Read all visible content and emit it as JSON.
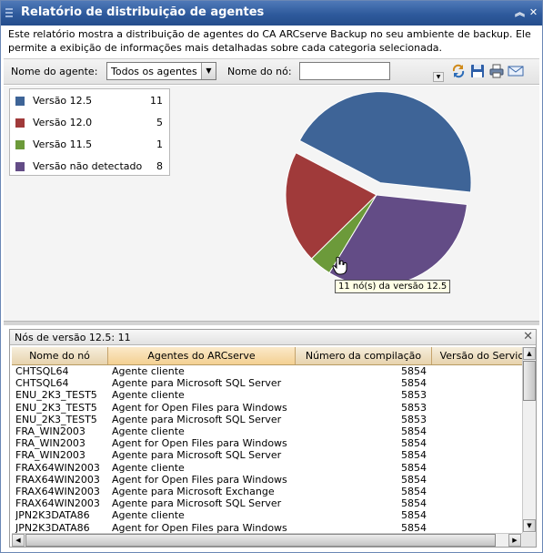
{
  "window": {
    "title": "Relatório de distribuição de agentes",
    "description": "Este relatório mostra a distribuição de agentes do CA ARCserve Backup no seu ambiente de backup. Ele permite a exibição de informações mais detalhadas sobre cada categoria selecionada."
  },
  "filters": {
    "agent_label": "Nome do agente:",
    "agent_value": "Todos os agentes",
    "node_label": "Nome do nó:",
    "node_value": ""
  },
  "toolbar_icons": [
    "refresh-icon",
    "save-icon",
    "print-icon",
    "email-icon"
  ],
  "legend": [
    {
      "label": "Versão 12.5",
      "count": "11",
      "color": "#3e6497"
    },
    {
      "label": "Versão 12.0",
      "count": "5",
      "color": "#a03a3a"
    },
    {
      "label": "Versão 11.5",
      "count": "1",
      "color": "#6c9a3a"
    },
    {
      "label": "Versão não detectado",
      "count": "8",
      "color": "#634c86"
    }
  ],
  "chart_data": {
    "type": "pie",
    "categories": [
      "Versão 12.5",
      "Versão 12.0",
      "Versão 11.5",
      "Versão não detectado"
    ],
    "values": [
      11,
      5,
      1,
      8
    ],
    "colors": [
      "#3e6497",
      "#a03a3a",
      "#6c9a3a",
      "#634c86"
    ],
    "exploded": "Versão 12.5",
    "legend_position": "top-left"
  },
  "tooltip": "11 nó(s) da versão 12.5",
  "detail": {
    "title": "Nós de versão 12.5: 11",
    "columns": [
      "Nome do nó",
      "Agentes do ARCserve",
      "Número da compilação",
      "Versão do Servic"
    ],
    "rows": [
      [
        "CHTSQL64",
        "Agente cliente",
        "5854",
        ""
      ],
      [
        "CHTSQL64",
        "Agente para Microsoft SQL Server",
        "5854",
        ""
      ],
      [
        "ENU_2K3_TEST5",
        "Agente cliente",
        "5853",
        ""
      ],
      [
        "ENU_2K3_TEST5",
        "Agent for Open Files para Windows",
        "5853",
        ""
      ],
      [
        "ENU_2K3_TEST5",
        "Agente para Microsoft SQL Server",
        "5853",
        ""
      ],
      [
        "FRA_WIN2003",
        "Agente cliente",
        "5854",
        ""
      ],
      [
        "FRA_WIN2003",
        "Agent for Open Files para Windows",
        "5854",
        ""
      ],
      [
        "FRA_WIN2003",
        "Agente para Microsoft SQL Server",
        "5854",
        ""
      ],
      [
        "FRAX64WIN2003",
        "Agente cliente",
        "5854",
        ""
      ],
      [
        "FRAX64WIN2003",
        "Agent for Open Files para Windows",
        "5854",
        ""
      ],
      [
        "FRAX64WIN2003",
        "Agente para Microsoft Exchange",
        "5854",
        ""
      ],
      [
        "FRAX64WIN2003",
        "Agente para Microsoft SQL Server",
        "5854",
        ""
      ],
      [
        "JPN2K3DATA86",
        "Agente cliente",
        "5854",
        ""
      ],
      [
        "JPN2K3DATA86",
        "Agent for Open Files para Windows",
        "5854",
        ""
      ]
    ]
  }
}
